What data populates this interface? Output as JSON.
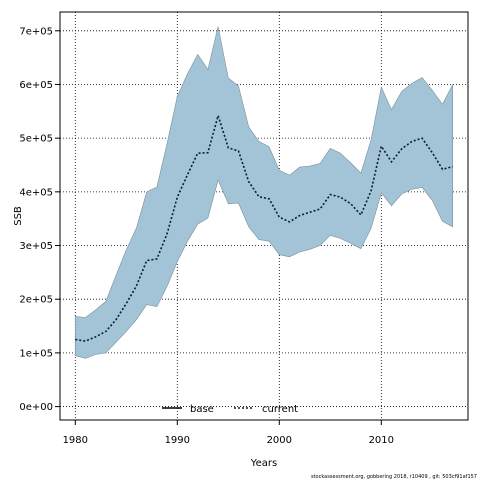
{
  "chart_data": {
    "type": "area",
    "xlabel": "Years",
    "ylabel": "SSB",
    "xlim": [
      1978.5,
      2018.5
    ],
    "ylim": [
      -25000,
      735000
    ],
    "x_ticks": [
      1980,
      1990,
      2000,
      2010
    ],
    "y_ticks": [
      0,
      100000,
      200000,
      300000,
      400000,
      500000,
      600000,
      700000
    ],
    "y_tick_labels": [
      "0e+00",
      "1e+05",
      "2e+05",
      "3e+05",
      "4e+05",
      "5e+05",
      "6e+05",
      "7e+05"
    ],
    "grid": true,
    "legend_placement": "bottom-center",
    "legend": [
      {
        "name": "base",
        "style": "solid",
        "color": "#000000"
      },
      {
        "name": "current",
        "style": "dotted",
        "color": "#0a1a3a"
      }
    ],
    "colors": {
      "band_fill": "#a3c4d6",
      "band_stroke": "#7b8f9c",
      "current_line": "#0a1a3a",
      "grid": "#000000"
    },
    "years": [
      1980,
      1981,
      1982,
      1983,
      1984,
      1985,
      1986,
      1987,
      1988,
      1989,
      1990,
      1991,
      1992,
      1993,
      1994,
      1995,
      1996,
      1997,
      1998,
      1999,
      2000,
      2001,
      2002,
      2003,
      2004,
      2005,
      2006,
      2007,
      2008,
      2009,
      2010,
      2011,
      2012,
      2013,
      2014,
      2015,
      2016,
      2017
    ],
    "series": [
      {
        "name": "current",
        "values": [
          125000,
          122000,
          130000,
          140000,
          162000,
          192000,
          225000,
          272000,
          275000,
          322000,
          390000,
          432000,
          472000,
          473000,
          542000,
          482000,
          476000,
          419000,
          391000,
          387000,
          353000,
          344000,
          356000,
          362000,
          368000,
          395000,
          390000,
          378000,
          357000,
          402000,
          485000,
          456000,
          480000,
          494000,
          500000,
          473000,
          442000,
          447000
        ]
      }
    ],
    "band_upper": [
      168000,
      166000,
      180000,
      196000,
      245000,
      292000,
      333000,
      400000,
      409000,
      490000,
      578000,
      620000,
      656000,
      628000,
      708000,
      612000,
      597000,
      521000,
      494000,
      484000,
      440000,
      431000,
      446000,
      448000,
      453000,
      481000,
      472000,
      454000,
      435000,
      497000,
      595000,
      553000,
      587000,
      602000,
      613000,
      589000,
      563000,
      600000
    ],
    "band_lower": [
      95000,
      90000,
      97000,
      100000,
      120000,
      140000,
      162000,
      190000,
      186000,
      224000,
      270000,
      308000,
      340000,
      351000,
      422000,
      378000,
      379000,
      335000,
      311000,
      308000,
      283000,
      279000,
      288000,
      293000,
      300000,
      319000,
      313000,
      304000,
      294000,
      332000,
      398000,
      374000,
      396000,
      405000,
      408000,
      384000,
      345000,
      335000
    ]
  },
  "footer": {
    "note": "stockassessment.org, gobbering 2018, r10409 , git: 503cf91af157"
  }
}
